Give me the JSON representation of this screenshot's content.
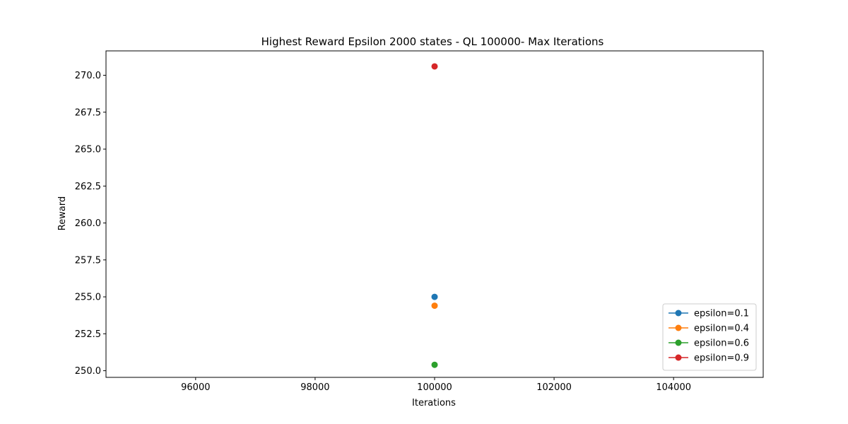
{
  "chart_data": {
    "type": "scatter",
    "title": "Highest Reward Epsilon 2000 states - QL 100000- Max Iterations",
    "xlabel": "Iterations",
    "ylabel": "Reward",
    "xlim": [
      94500,
      105500
    ],
    "ylim": [
      249.55,
      271.65
    ],
    "xticks": [
      96000,
      98000,
      100000,
      102000,
      104000
    ],
    "xtick_labels": [
      "96000",
      "98000",
      "100000",
      "102000",
      "104000"
    ],
    "yticks": [
      250.0,
      252.5,
      255.0,
      257.5,
      260.0,
      262.5,
      265.0,
      267.5,
      270.0
    ],
    "ytick_labels": [
      "250.0",
      "252.5",
      "255.0",
      "257.5",
      "260.0",
      "262.5",
      "265.0",
      "267.5",
      "270.0"
    ],
    "grid": false,
    "legend_position": "lower-right",
    "series": [
      {
        "name": "epsilon=0.1",
        "color": "#1f77b4",
        "x": [
          100000
        ],
        "y": [
          255.0
        ]
      },
      {
        "name": "epsilon=0.4",
        "color": "#ff7f0e",
        "x": [
          100000
        ],
        "y": [
          254.4
        ]
      },
      {
        "name": "epsilon=0.6",
        "color": "#2ca02c",
        "x": [
          100000
        ],
        "y": [
          250.4
        ]
      },
      {
        "name": "epsilon=0.9",
        "color": "#d62728",
        "x": [
          100000
        ],
        "y": [
          270.6
        ]
      }
    ]
  }
}
